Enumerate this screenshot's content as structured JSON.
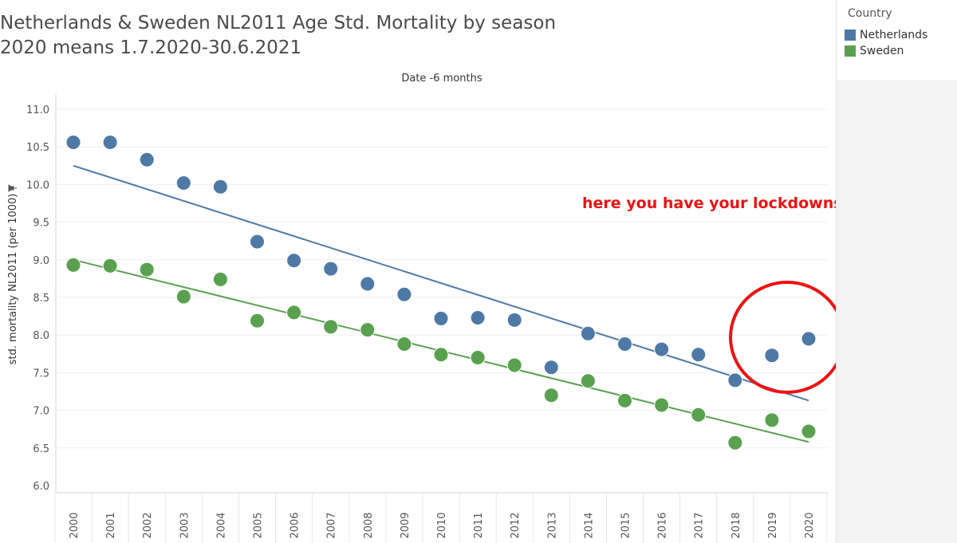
{
  "chart_data": {
    "type": "scatter",
    "title": [
      "Netherlands & Sweden NL2011 Age Std. Mortality by season",
      "2020 means 1.7.2020-30.6.2021"
    ],
    "xlabel": "Date -6 months",
    "ylabel": "std. mortality NL2011  (per 1000)",
    "categories": [
      "2000",
      "2001",
      "2002",
      "2003",
      "2004",
      "2005",
      "2006",
      "2007",
      "2008",
      "2009",
      "2010",
      "2011",
      "2012",
      "2013",
      "2014",
      "2015",
      "2016",
      "2017",
      "2018",
      "2019",
      "2020"
    ],
    "yticks": [
      "6.0",
      "6.5",
      "7.0",
      "7.5",
      "8.0",
      "8.5",
      "9.0",
      "9.5",
      "10.0",
      "10.5",
      "11.0"
    ],
    "ylim": [
      6.0,
      11.0
    ],
    "grid": true,
    "legend": {
      "title": "Country",
      "position": "top-right"
    },
    "series": [
      {
        "name": "Netherlands",
        "color": "#4e79a7",
        "values": [
          10.56,
          10.56,
          10.33,
          10.02,
          9.97,
          9.24,
          8.99,
          8.88,
          8.68,
          8.54,
          8.22,
          8.23,
          8.2,
          7.57,
          8.02,
          7.88,
          7.81,
          7.74,
          7.4,
          7.73,
          7.95
        ],
        "trend": [
          10.25,
          7.13
        ]
      },
      {
        "name": "Sweden",
        "color": "#59a14f",
        "values": [
          8.93,
          8.92,
          8.87,
          8.51,
          8.74,
          8.19,
          8.3,
          8.11,
          8.07,
          7.88,
          7.74,
          7.7,
          7.6,
          7.2,
          7.39,
          7.13,
          7.07,
          6.94,
          6.57,
          6.87,
          6.72
        ],
        "trend": [
          9.0,
          6.58
        ]
      }
    ],
    "annotation": {
      "text": "here you have your lockdowns",
      "color": "#ee1111"
    }
  }
}
